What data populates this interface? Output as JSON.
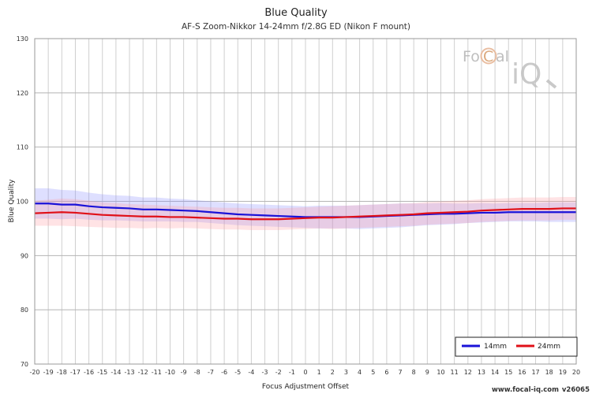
{
  "chart_data": {
    "type": "line",
    "title": "Blue Quality",
    "subtitle": "AF-S Zoom-Nikkor 14-24mm f/2.8G ED (Nikon F mount)",
    "xlabel": "Focus Adjustment Offset",
    "ylabel": "Blue Quality",
    "xlim": [
      -20,
      20
    ],
    "ylim": [
      70,
      130
    ],
    "yticks": [
      70,
      80,
      90,
      100,
      110,
      120,
      130
    ],
    "x": [
      -20,
      -19,
      -18,
      -17,
      -16,
      -15,
      -14,
      -13,
      -12,
      -11,
      -10,
      -9,
      -8,
      -7,
      -6,
      -5,
      -4,
      -3,
      -2,
      -1,
      0,
      1,
      2,
      3,
      4,
      5,
      6,
      7,
      8,
      9,
      10,
      11,
      12,
      13,
      14,
      15,
      16,
      17,
      18,
      19,
      20
    ],
    "series": [
      {
        "name": "14mm",
        "color": "#1a12d8",
        "band_color": "#8a8cff",
        "values": [
          99.6,
          99.6,
          99.4,
          99.4,
          99.1,
          98.9,
          98.8,
          98.7,
          98.5,
          98.5,
          98.4,
          98.3,
          98.2,
          98.0,
          97.8,
          97.6,
          97.5,
          97.4,
          97.3,
          97.2,
          97.1,
          97.1,
          97.1,
          97.1,
          97.1,
          97.2,
          97.3,
          97.4,
          97.5,
          97.6,
          97.7,
          97.7,
          97.8,
          97.9,
          97.9,
          98.0,
          98.0,
          98.0,
          98.0,
          98.0,
          98.0
        ],
        "band_width": [
          2.8,
          2.8,
          2.7,
          2.6,
          2.5,
          2.4,
          2.3,
          2.3,
          2.2,
          2.2,
          2.1,
          2.1,
          2.0,
          2.0,
          2.0,
          2.0,
          2.0,
          2.0,
          2.0,
          2.0,
          2.0,
          2.1,
          2.1,
          2.1,
          2.2,
          2.2,
          2.2,
          2.2,
          2.1,
          2.0,
          2.0,
          1.9,
          1.8,
          1.8,
          1.7,
          1.7,
          1.7,
          1.7,
          1.8,
          1.8,
          1.8
        ]
      },
      {
        "name": "24mm",
        "color": "#e01018",
        "band_color": "#ff9aa0",
        "values": [
          97.8,
          97.9,
          98.0,
          97.9,
          97.7,
          97.5,
          97.4,
          97.3,
          97.2,
          97.2,
          97.1,
          97.1,
          97.0,
          96.9,
          96.8,
          96.8,
          96.7,
          96.7,
          96.7,
          96.8,
          96.9,
          97.0,
          97.0,
          97.1,
          97.2,
          97.3,
          97.4,
          97.5,
          97.6,
          97.8,
          97.9,
          98.0,
          98.1,
          98.3,
          98.4,
          98.5,
          98.6,
          98.6,
          98.6,
          98.7,
          98.7
        ],
        "band_width": [
          2.3,
          2.4,
          2.5,
          2.5,
          2.4,
          2.3,
          2.3,
          2.2,
          2.2,
          2.1,
          2.1,
          2.0,
          2.0,
          2.0,
          2.0,
          2.0,
          2.0,
          2.0,
          2.0,
          2.0,
          2.0,
          2.0,
          2.1,
          2.1,
          2.1,
          2.1,
          2.1,
          2.1,
          2.1,
          2.1,
          2.1,
          2.1,
          2.1,
          2.1,
          2.1,
          2.1,
          2.1,
          2.1,
          2.1,
          2.1,
          2.1
        ]
      }
    ],
    "legend_position": "bottom-right",
    "grid": true
  },
  "logo": {
    "brand_left": "Fo",
    "brand_mid": "C",
    "brand_right": "al",
    "brand_iq": "iQ"
  },
  "footer": {
    "website": "www.focal-iq.com",
    "version": "v26065"
  }
}
